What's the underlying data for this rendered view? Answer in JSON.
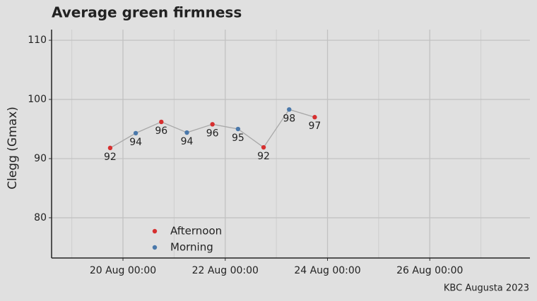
{
  "chart_data": {
    "type": "line",
    "title": "Average green firmness",
    "y_label": "Clegg (Gmax)",
    "caption": "KBC Augusta 2023",
    "x": [
      "19 Aug 18:00",
      "20 Aug 06:00",
      "20 Aug 18:00",
      "21 Aug 06:00",
      "21 Aug 18:00",
      "22 Aug 06:00",
      "22 Aug 18:00",
      "23 Aug 06:00",
      "23 Aug 18:00"
    ],
    "values": [
      91.8,
      94.3,
      96.2,
      94.4,
      95.8,
      95.0,
      91.9,
      98.3,
      97.0
    ],
    "value_labels": [
      "92",
      "94",
      "96",
      "94",
      "96",
      "95",
      "92",
      "98",
      "97"
    ],
    "point_colors": [
      "#d62f2f",
      "#4a78aa",
      "#d62f2f",
      "#4a78aa",
      "#d62f2f",
      "#4a78aa",
      "#d62f2f",
      "#4a78aa",
      "#d62f2f"
    ],
    "line_color": "#a8a8a8",
    "legend": [
      {
        "name": "Afternoon",
        "color": "#d62f2f"
      },
      {
        "name": "Morning",
        "color": "#4a78aa"
      }
    ],
    "xlim": [
      "18 Aug 14:30",
      "27 Aug 23:00"
    ],
    "xticks": [
      "20 Aug 00:00",
      "22 Aug 00:00",
      "24 Aug 00:00",
      "26 Aug 00:00"
    ],
    "ylim": [
      73.2,
      111.8
    ],
    "yticks": [
      80,
      90,
      100,
      110
    ],
    "grid": true
  }
}
